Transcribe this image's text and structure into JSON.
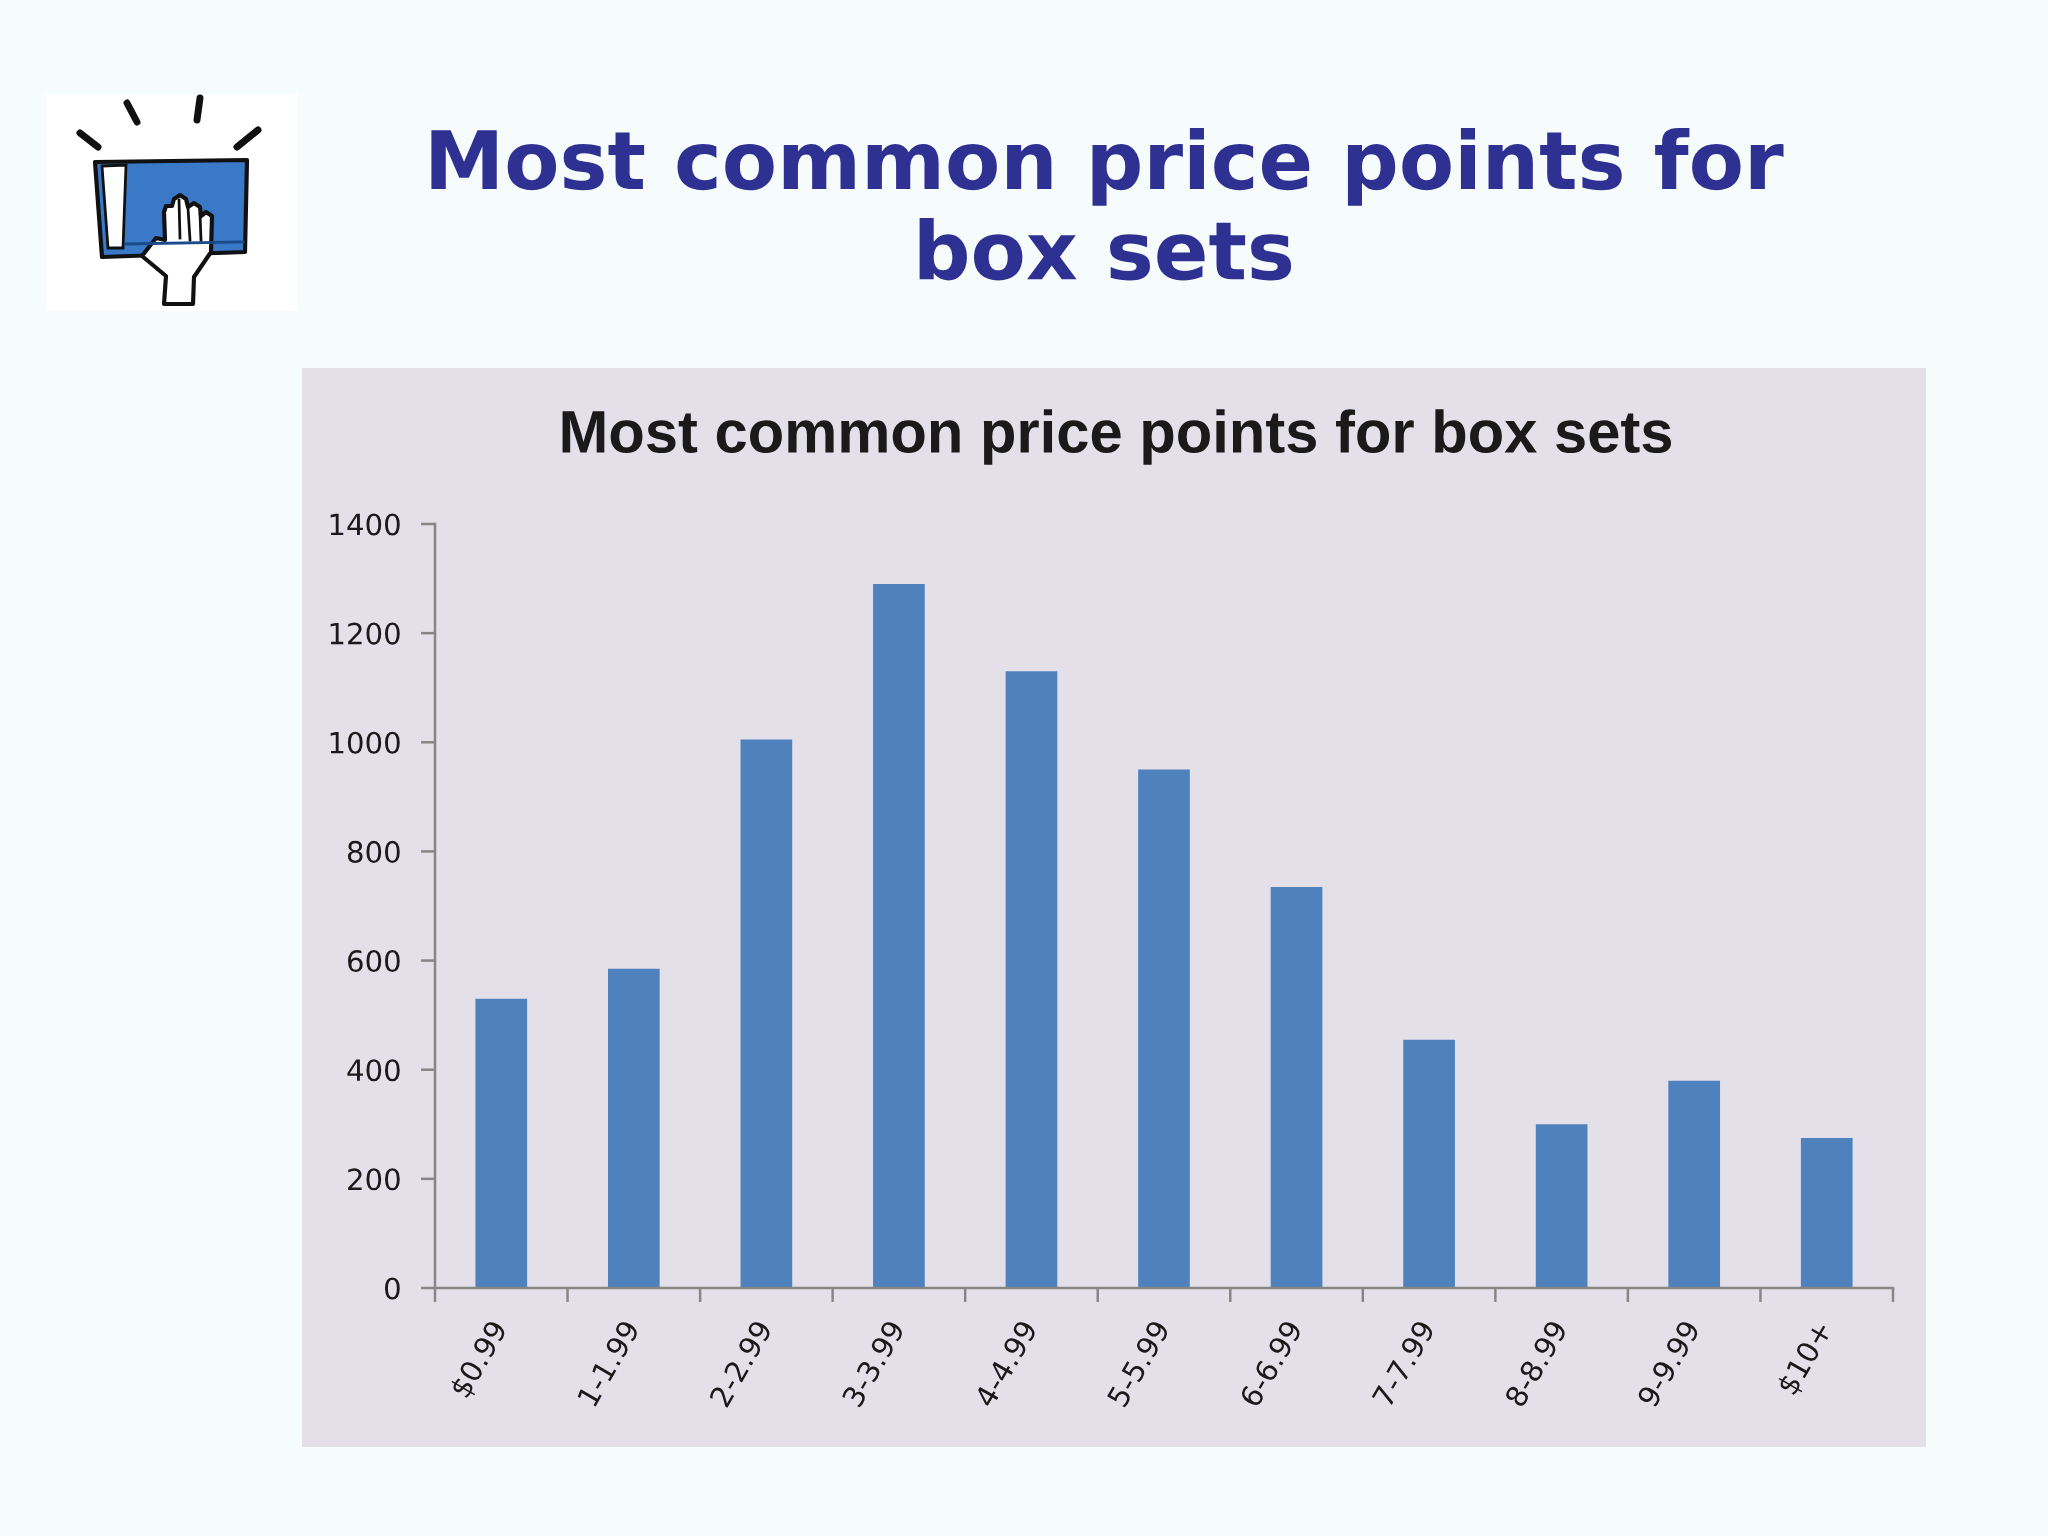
{
  "chart_data": {
    "type": "bar",
    "title": "Most common price points for box sets",
    "subtitle": "Most common price points for box sets",
    "categories": [
      "$0.99",
      "1-1.99",
      "2-2.99",
      "3-3.99",
      "4-4.99",
      "5-5.99",
      "6-6.99",
      "7-7.99",
      "8-8.99",
      "9-9.99",
      "$10+"
    ],
    "values": [
      530,
      585,
      1005,
      1290,
      1130,
      950,
      735,
      455,
      300,
      380,
      275
    ],
    "color": "#4f81bd",
    "ylim": [
      0,
      1400
    ],
    "yticks": [
      0,
      200,
      400,
      600,
      800,
      1000,
      1200,
      1400
    ]
  }
}
